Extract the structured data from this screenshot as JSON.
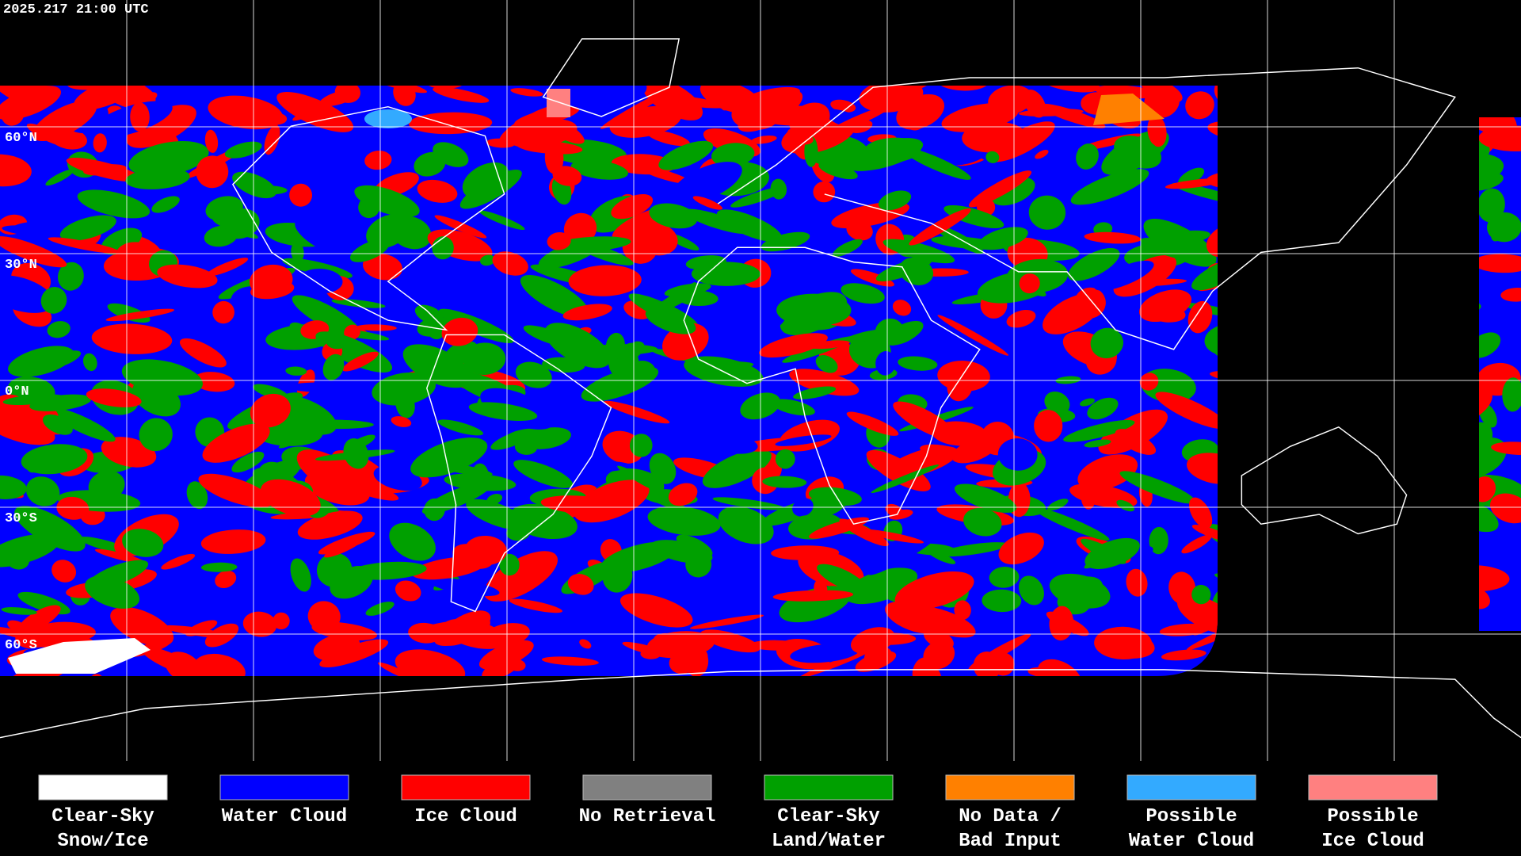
{
  "timestamp": "2025.217 21:00 UTC",
  "latitude_labels": [
    "60°N",
    "30°N",
    "0°N",
    "30°S",
    "60°S"
  ],
  "legend": [
    {
      "lines": [
        "Clear-Sky",
        "Snow/Ice"
      ],
      "color": "#ffffff"
    },
    {
      "lines": [
        "Water Cloud"
      ],
      "color": "#0000ff"
    },
    {
      "lines": [
        "Ice Cloud"
      ],
      "color": "#ff0000"
    },
    {
      "lines": [
        "No Retrieval"
      ],
      "color": "#808080"
    },
    {
      "lines": [
        "Clear-Sky",
        "Land/Water"
      ],
      "color": "#00a000"
    },
    {
      "lines": [
        "No Data /",
        "Bad Input"
      ],
      "color": "#ff8000"
    },
    {
      "lines": [
        "Possible",
        "Water Cloud"
      ],
      "color": "#33aaff"
    },
    {
      "lines": [
        "Possible",
        "Ice Cloud"
      ],
      "color": "#ff8080"
    }
  ]
}
